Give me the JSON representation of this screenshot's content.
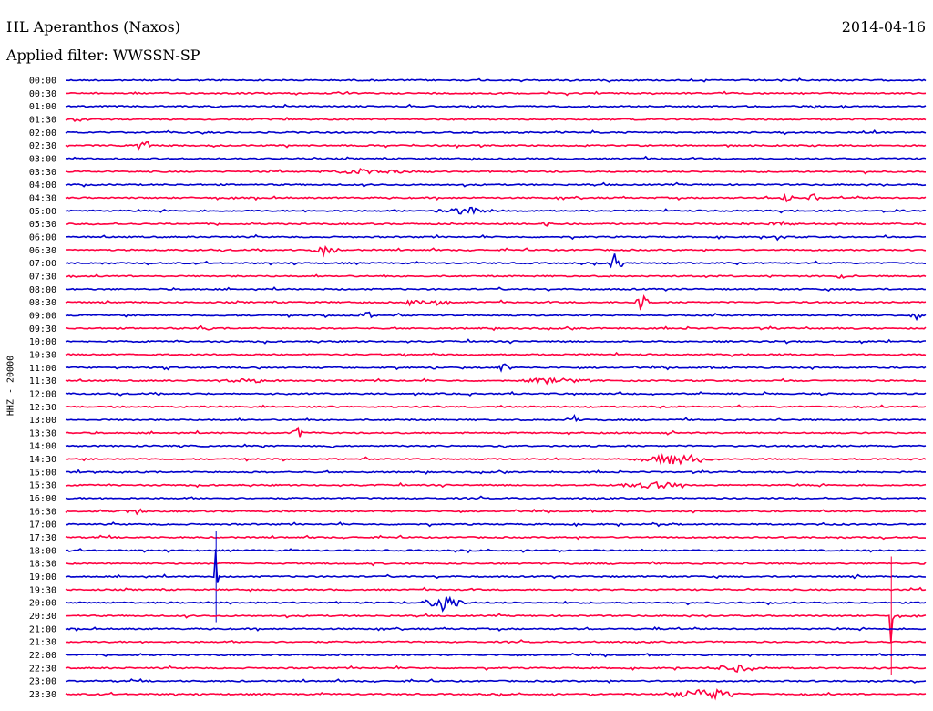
{
  "header": {
    "station": "HL Aperanthos (Naxos)",
    "date": "2014-04-16",
    "filter": "Applied filter: WWSSN-SP"
  },
  "chart_data": {
    "type": "line",
    "ylabel": "HHZ - 20000",
    "colors": {
      "blue": "#0000cc",
      "red": "#ff0040"
    },
    "trace_color_order": [
      "blue",
      "red"
    ],
    "y_tick_labels": [
      "00:00",
      "00:30",
      "01:00",
      "01:30",
      "02:00",
      "02:30",
      "03:00",
      "03:30",
      "04:00",
      "04:30",
      "05:00",
      "05:30",
      "06:00",
      "06:30",
      "07:00",
      "07:30",
      "08:00",
      "08:30",
      "09:00",
      "09:30",
      "10:00",
      "10:30",
      "11:00",
      "11:30",
      "12:00",
      "12:30",
      "13:00",
      "13:30",
      "14:00",
      "14:30",
      "15:00",
      "15:30",
      "16:00",
      "16:30",
      "17:00",
      "17:30",
      "18:00",
      "18:30",
      "19:00",
      "19:30",
      "20:00",
      "20:30",
      "21:00",
      "21:30",
      "22:00",
      "22:30",
      "23:00",
      "23:30"
    ],
    "x_range_fraction": [
      0,
      1
    ],
    "events": [
      {
        "row": 5,
        "x": 0.09,
        "amp": 9,
        "width": 0.01
      },
      {
        "row": 7,
        "x": 0.35,
        "amp": 3,
        "width": 0.08
      },
      {
        "row": 9,
        "x": 0.84,
        "amp": 5,
        "width": 0.01
      },
      {
        "row": 9,
        "x": 0.87,
        "amp": 5,
        "width": 0.01
      },
      {
        "row": 10,
        "x": 0.47,
        "amp": 4,
        "width": 0.05
      },
      {
        "row": 10,
        "x": 0.97,
        "amp": 3,
        "width": 0.01
      },
      {
        "row": 11,
        "x": 0.56,
        "amp": 3,
        "width": 0.01
      },
      {
        "row": 11,
        "x": 0.83,
        "amp": 3,
        "width": 0.02
      },
      {
        "row": 12,
        "x": 0.83,
        "amp": 4,
        "width": 0.01
      },
      {
        "row": 13,
        "x": 0.3,
        "amp": 6,
        "width": 0.02
      },
      {
        "row": 14,
        "x": 0.64,
        "amp": 13,
        "width": 0.01
      },
      {
        "row": 15,
        "x": 0.9,
        "amp": 3,
        "width": 0.01
      },
      {
        "row": 17,
        "x": 0.42,
        "amp": 4,
        "width": 0.04
      },
      {
        "row": 17,
        "x": 0.67,
        "amp": 8,
        "width": 0.01
      },
      {
        "row": 18,
        "x": 0.35,
        "amp": 5,
        "width": 0.01
      },
      {
        "row": 18,
        "x": 0.99,
        "amp": 5,
        "width": 0.01
      },
      {
        "row": 19,
        "x": 0.16,
        "amp": 5,
        "width": 0.01
      },
      {
        "row": 22,
        "x": 0.51,
        "amp": 6,
        "width": 0.01
      },
      {
        "row": 23,
        "x": 0.21,
        "amp": 3,
        "width": 0.04
      },
      {
        "row": 23,
        "x": 0.57,
        "amp": 3,
        "width": 0.06
      },
      {
        "row": 26,
        "x": 0.59,
        "amp": 6,
        "width": 0.01
      },
      {
        "row": 27,
        "x": 0.27,
        "amp": 6,
        "width": 0.01
      },
      {
        "row": 29,
        "x": 0.71,
        "amp": 6,
        "width": 0.06
      },
      {
        "row": 31,
        "x": 0.68,
        "amp": 4,
        "width": 0.05
      },
      {
        "row": 33,
        "x": 0.08,
        "amp": 3,
        "width": 0.02
      },
      {
        "row": 34,
        "x": 0.88,
        "amp": 3,
        "width": 0.01
      },
      {
        "row": 38,
        "x": 0.175,
        "amp": 50,
        "width": 0.002
      },
      {
        "row": 40,
        "x": 0.44,
        "amp": 9,
        "width": 0.03
      },
      {
        "row": 41,
        "x": 0.96,
        "amp": 65,
        "width": 0.002
      },
      {
        "row": 45,
        "x": 0.78,
        "amp": 4,
        "width": 0.04
      },
      {
        "row": 47,
        "x": 0.74,
        "amp": 7,
        "width": 0.05
      }
    ]
  }
}
